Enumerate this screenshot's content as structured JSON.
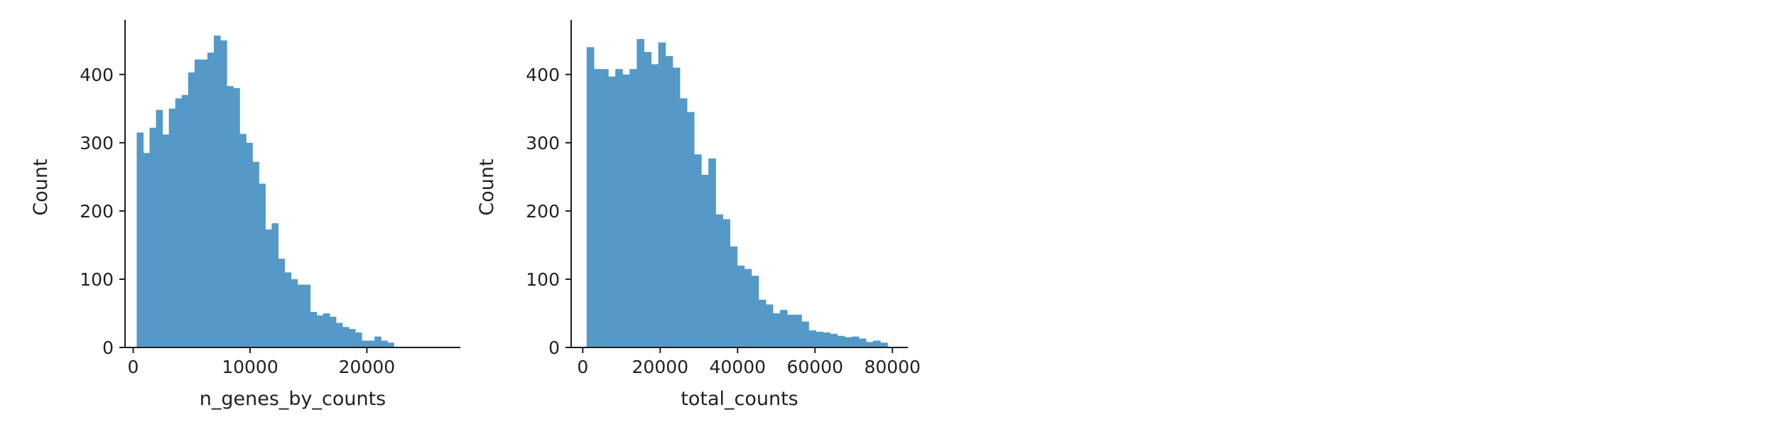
{
  "colors": {
    "bar": "#5499c7",
    "axis": "#1f1f1f",
    "background": "#ffffff"
  },
  "chart_data": [
    {
      "type": "bar",
      "title": "",
      "xlabel": "n_genes_by_counts",
      "ylabel": "Count",
      "xlim": [
        -700,
        28000
      ],
      "ylim": [
        0,
        480
      ],
      "grid": false,
      "x_ticks": [
        0,
        10000,
        20000
      ],
      "x_tick_labels": [
        "0",
        "10000",
        "20000"
      ],
      "y_ticks": [
        0,
        100,
        200,
        300,
        400
      ],
      "y_tick_labels": [
        "0",
        "100",
        "200",
        "300",
        "400"
      ],
      "bin_start": 300,
      "bin_width": 550,
      "values": [
        315,
        285,
        322,
        348,
        312,
        350,
        365,
        370,
        403,
        422,
        422,
        432,
        457,
        450,
        383,
        380,
        313,
        300,
        272,
        240,
        173,
        182,
        130,
        110,
        100,
        92,
        92,
        52,
        47,
        50,
        45,
        36,
        30,
        27,
        22,
        10,
        10,
        16,
        10,
        7
      ]
    },
    {
      "type": "bar",
      "title": "",
      "xlabel": "total_counts",
      "ylabel": "Count",
      "xlim": [
        -3000,
        84000
      ],
      "ylim": [
        0,
        480
      ],
      "grid": false,
      "x_ticks": [
        0,
        20000,
        40000,
        60000,
        80000
      ],
      "x_tick_labels": [
        "0",
        "20000",
        "40000",
        "60000",
        "80000"
      ],
      "y_ticks": [
        0,
        100,
        200,
        300,
        400
      ],
      "y_tick_labels": [
        "0",
        "100",
        "200",
        "300",
        "400"
      ],
      "bin_start": 1000,
      "bin_width": 1850,
      "values": [
        440,
        408,
        408,
        397,
        408,
        400,
        408,
        452,
        433,
        415,
        447,
        427,
        410,
        365,
        345,
        283,
        253,
        277,
        195,
        188,
        148,
        120,
        115,
        105,
        70,
        63,
        50,
        55,
        48,
        48,
        38,
        25,
        23,
        22,
        20,
        17,
        15,
        16,
        13,
        8,
        10,
        7
      ]
    }
  ]
}
